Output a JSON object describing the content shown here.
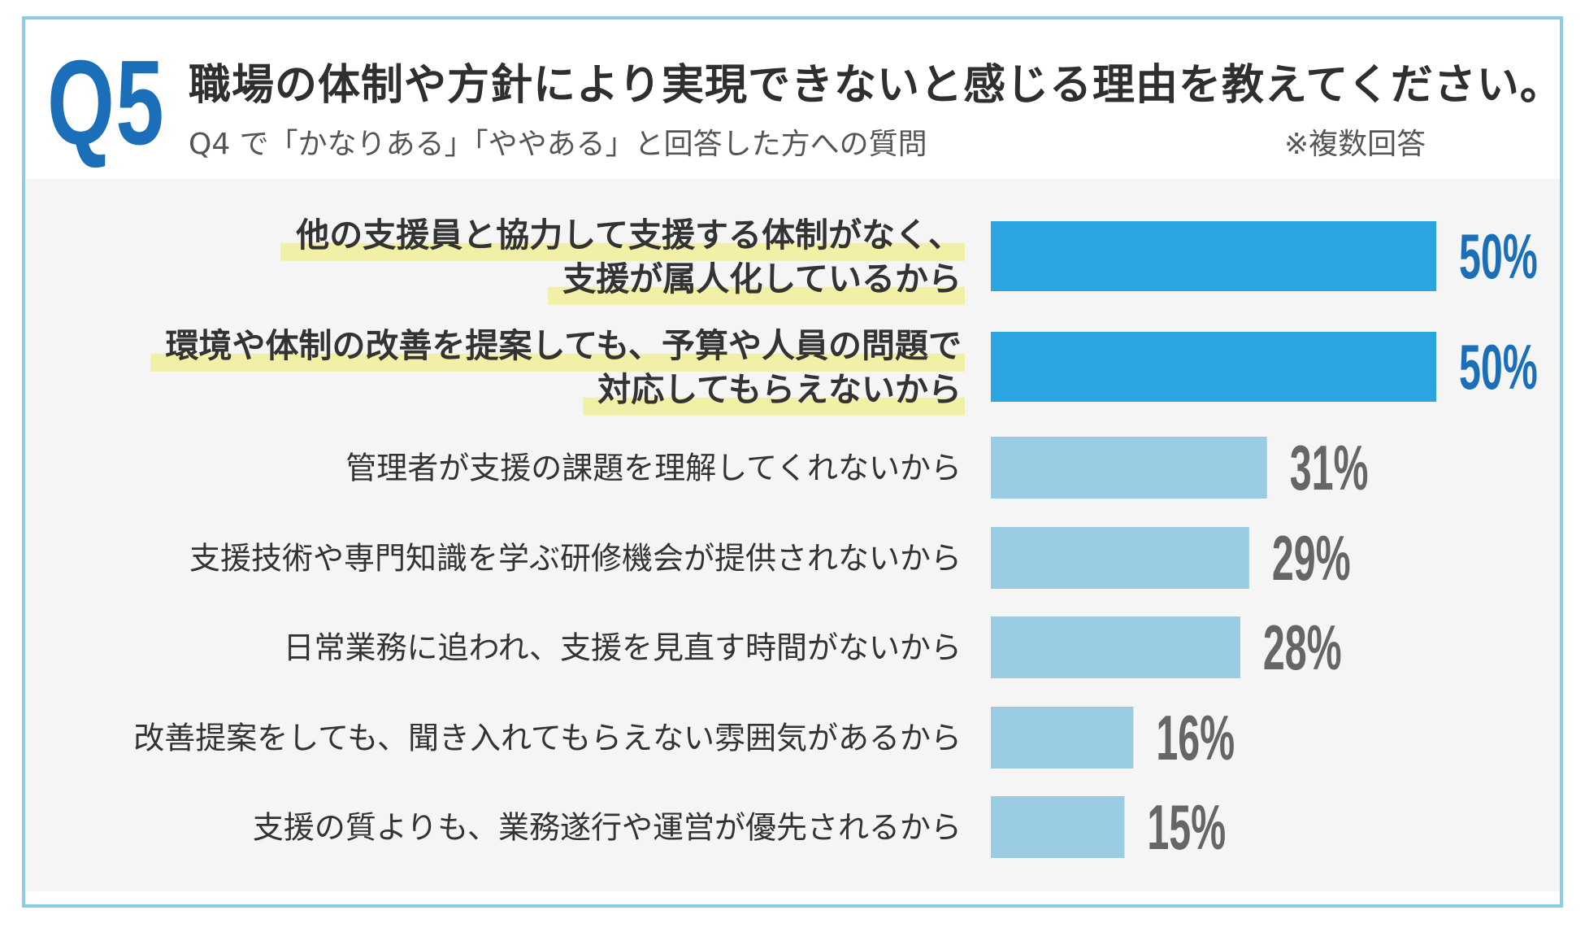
{
  "header": {
    "q_number": "Q5",
    "title": "職場の体制や方針により実現できないと感じる理由を教えてください。",
    "subtitle": "Q4 で「かなりある」「ややある」と回答した方への質問",
    "note": "※複数回答"
  },
  "colors": {
    "accent": "#1a6fb8",
    "bar_highlight": "#2aa5e0",
    "bar_normal": "#99cce3",
    "value_highlight": "#1a6fb8",
    "value_normal": "#666666",
    "marker": "#f1f0a6",
    "frame": "#8ccbe3",
    "panel": "#f5f5f5"
  },
  "chart_data": {
    "type": "bar",
    "orientation": "horizontal",
    "xlim": [
      0,
      50
    ],
    "grid": false,
    "categories": [
      [
        "他の支援員と協力して支援する体制がなく、",
        "支援が属人化しているから"
      ],
      [
        "環境や体制の改善を提案しても、予算や人員の問題で",
        "対応してもらえないから"
      ],
      [
        "管理者が支援の課題を理解してくれないから"
      ],
      [
        "支援技術や専門知識を学ぶ研修機会が提供されないから"
      ],
      [
        "日常業務に追われ、支援を見直す時間がないから"
      ],
      [
        "改善提案をしても、聞き入れてもらえない雰囲気があるから"
      ],
      [
        "支援の質よりも、業務遂行や運営が優先されるから"
      ]
    ],
    "values": [
      50,
      50,
      31,
      29,
      28,
      16,
      15
    ],
    "value_labels": [
      "50%",
      "50%",
      "31%",
      "29%",
      "28%",
      "16%",
      "15%"
    ],
    "highlighted": [
      true,
      true,
      false,
      false,
      false,
      false,
      false
    ]
  }
}
